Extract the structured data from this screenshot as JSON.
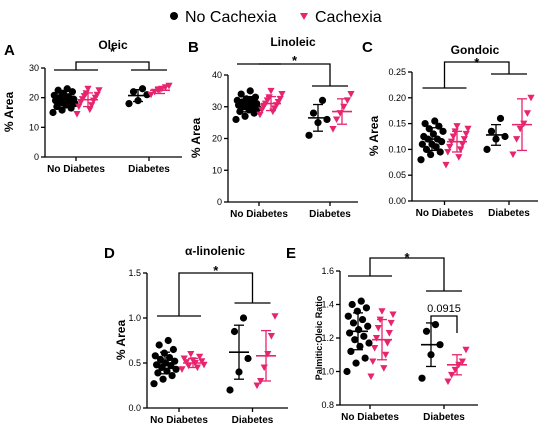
{
  "legend": {
    "items": [
      {
        "label": "No Cachexia",
        "color": "#000000",
        "marker": "circle"
      },
      {
        "label": "Cachexia",
        "color": "#e8246f",
        "marker": "triangle-down"
      }
    ]
  },
  "chart_data": [
    {
      "panel": "A",
      "title": "Oleic",
      "type": "scatter",
      "ylabel": "% Area",
      "ylim": [
        0,
        30
      ],
      "yticks": [
        "0",
        "10",
        "20",
        "30"
      ],
      "categories": [
        "No Diabetes",
        "Diabetes"
      ],
      "series": [
        {
          "name": "No Cachexia",
          "group": 0,
          "values": [
            15,
            15.8,
            16.5,
            17,
            17.5,
            18,
            18.3,
            18.6,
            19,
            19.2,
            19.5,
            20,
            20.3,
            20.8,
            21.5,
            22,
            22.5,
            23
          ],
          "mean": 19,
          "sd": 2.2
        },
        {
          "name": "Cachexia",
          "group": 0,
          "values": [
            14.5,
            16,
            17,
            17.5,
            18.5,
            19,
            19.5,
            20,
            20.5,
            21,
            21.5,
            22.5,
            23
          ],
          "mean": 19.3,
          "sd": 2.3
        },
        {
          "name": "No Cachexia",
          "group": 1,
          "values": [
            18,
            19,
            21,
            22,
            23
          ],
          "mean": 20.7,
          "sd": 2.0
        },
        {
          "name": "Cachexia",
          "group": 1,
          "values": [
            21,
            22,
            22.5,
            23,
            23.5,
            24
          ],
          "mean": 22.5,
          "sd": 1.1
        }
      ],
      "annotation": "*"
    },
    {
      "panel": "B",
      "title": "Linoleic",
      "type": "scatter",
      "ylabel": "% Area",
      "ylim": [
        0,
        40
      ],
      "yticks": [
        "0",
        "10",
        "20",
        "30",
        "40"
      ],
      "categories": [
        "No Diabetes",
        "Diabetes"
      ],
      "series": [
        {
          "name": "No Cachexia",
          "group": 0,
          "values": [
            26,
            27,
            28,
            28.5,
            29,
            29.5,
            30,
            30,
            30.5,
            31,
            31,
            31.5,
            32,
            32,
            32.5,
            33,
            34,
            35
          ],
          "mean": 30.8,
          "sd": 2.4
        },
        {
          "name": "Cachexia",
          "group": 0,
          "values": [
            27.5,
            28.5,
            29,
            29.5,
            30,
            30.5,
            31,
            31.5,
            32,
            32.5,
            33,
            34,
            35
          ],
          "mean": 31,
          "sd": 2.2
        },
        {
          "name": "No Cachexia",
          "group": 1,
          "values": [
            21,
            25,
            26,
            28,
            32
          ],
          "mean": 26.5,
          "sd": 4.2
        },
        {
          "name": "Cachexia",
          "group": 1,
          "values": [
            23,
            26,
            28,
            30,
            32,
            34
          ],
          "mean": 28.5,
          "sd": 4.0
        }
      ],
      "annotation": "*"
    },
    {
      "panel": "C",
      "title": "Gondoic",
      "type": "scatter",
      "ylabel": "% Area",
      "ylim": [
        0,
        0.25
      ],
      "yticks": [
        "0.00",
        "0.05",
        "0.10",
        "0.15",
        "0.20",
        "0.25"
      ],
      "categories": [
        "No Diabetes",
        "Diabetes"
      ],
      "series": [
        {
          "name": "No Cachexia",
          "group": 0,
          "values": [
            0.08,
            0.09,
            0.095,
            0.1,
            0.105,
            0.11,
            0.11,
            0.115,
            0.12,
            0.12,
            0.125,
            0.13,
            0.135,
            0.14,
            0.145,
            0.15,
            0.155
          ],
          "mean": 0.12,
          "sd": 0.022
        },
        {
          "name": "Cachexia",
          "group": 0,
          "values": [
            0.07,
            0.085,
            0.095,
            0.1,
            0.105,
            0.11,
            0.115,
            0.12,
            0.125,
            0.13,
            0.135,
            0.14,
            0.145
          ],
          "mean": 0.115,
          "sd": 0.02
        },
        {
          "name": "No Cachexia",
          "group": 1,
          "values": [
            0.1,
            0.12,
            0.125,
            0.135,
            0.16
          ],
          "mean": 0.128,
          "sd": 0.02
        },
        {
          "name": "Cachexia",
          "group": 1,
          "values": [
            0.09,
            0.12,
            0.14,
            0.15,
            0.17,
            0.2
          ],
          "mean": 0.148,
          "sd": 0.05
        }
      ],
      "annotation": "*"
    },
    {
      "panel": "D",
      "title": "α-linolenic",
      "type": "scatter",
      "ylabel": "% Area",
      "ylim": [
        0,
        1.5
      ],
      "yticks": [
        "0.0",
        "0.5",
        "1.0",
        "1.5"
      ],
      "categories": [
        "No Diabetes",
        "Diabetes"
      ],
      "series": [
        {
          "name": "No Cachexia",
          "group": 0,
          "values": [
            0.27,
            0.32,
            0.36,
            0.39,
            0.41,
            0.43,
            0.45,
            0.47,
            0.48,
            0.5,
            0.52,
            0.54,
            0.56,
            0.58,
            0.61,
            0.65,
            0.7,
            0.75
          ],
          "mean": 0.5,
          "sd": 0.12
        },
        {
          "name": "Cachexia",
          "group": 0,
          "values": [
            0.43,
            0.45,
            0.47,
            0.48,
            0.5,
            0.51,
            0.52,
            0.53,
            0.55,
            0.57,
            0.6
          ],
          "mean": 0.5,
          "sd": 0.05
        },
        {
          "name": "No Cachexia",
          "group": 1,
          "values": [
            0.2,
            0.4,
            0.55,
            0.85,
            1.0
          ],
          "mean": 0.62,
          "sd": 0.3
        },
        {
          "name": "Cachexia",
          "group": 1,
          "values": [
            0.25,
            0.3,
            0.45,
            0.6,
            0.8,
            1.02
          ],
          "mean": 0.58,
          "sd": 0.28
        }
      ],
      "annotation": "*"
    },
    {
      "panel": "E",
      "title": "",
      "type": "scatter",
      "ylabel": "Palmitic:Oleic Ratio",
      "ylim": [
        0.8,
        1.6
      ],
      "yticks": [
        "0.8",
        "1.0",
        "1.2",
        "1.4",
        "1.6"
      ],
      "categories": [
        "No Diabetes",
        "Diabetes"
      ],
      "series": [
        {
          "name": "No Cachexia",
          "group": 0,
          "values": [
            1.0,
            1.05,
            1.08,
            1.12,
            1.15,
            1.17,
            1.19,
            1.21,
            1.23,
            1.25,
            1.27,
            1.29,
            1.31,
            1.33,
            1.36,
            1.38,
            1.4,
            1.42
          ],
          "mean": 1.24,
          "sd": 0.11
        },
        {
          "name": "Cachexia",
          "group": 0,
          "values": [
            0.97,
            1.02,
            1.06,
            1.1,
            1.14,
            1.17,
            1.2,
            1.23,
            1.26,
            1.29,
            1.31,
            1.34,
            1.36
          ],
          "mean": 1.19,
          "sd": 0.12
        },
        {
          "name": "No Cachexia",
          "group": 1,
          "values": [
            0.96,
            1.1,
            1.16,
            1.24,
            1.28
          ],
          "mean": 1.16,
          "sd": 0.13
        },
        {
          "name": "Cachexia",
          "group": 1,
          "values": [
            0.94,
            0.98,
            1.01,
            1.04,
            1.06,
            1.13
          ],
          "mean": 1.04,
          "sd": 0.06
        }
      ],
      "annotation": "*",
      "annotation2": "0.0915"
    }
  ]
}
